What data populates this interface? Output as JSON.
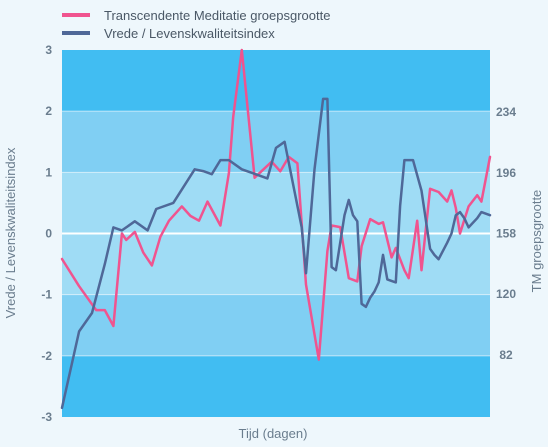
{
  "chart_data": {
    "type": "line",
    "xlabel": "Tijd (dagen)",
    "ylabel_left": "Vrede / Levenskwaliteitsindex",
    "ylabel_right": "TM groepsgrootte",
    "ylim_left": [
      -3,
      3
    ],
    "yticks_left": [
      -3,
      -2,
      -1,
      0,
      1,
      2,
      3
    ],
    "ylim_right": [
      43,
      273
    ],
    "yticks_right": [
      82,
      120,
      158,
      196,
      234
    ],
    "bands": [
      {
        "from": -3,
        "to": -2,
        "color": "#41bdf2"
      },
      {
        "from": -2,
        "to": -1,
        "color": "#80cff3"
      },
      {
        "from": -1,
        "to": 0,
        "color": "#9fdcf5"
      },
      {
        "from": 0,
        "to": 1,
        "color": "#9fdcf5"
      },
      {
        "from": 1,
        "to": 2,
        "color": "#80cff3"
      },
      {
        "from": 2,
        "to": 3,
        "color": "#41bdf2"
      }
    ],
    "series": [
      {
        "name": "Transcendente Meditatie groepsgrootte",
        "axis": "right",
        "color": "#f0548f",
        "x": [
          0,
          4,
          8,
          10,
          12,
          14,
          15,
          17,
          19,
          21,
          23,
          25,
          28,
          30,
          32,
          34,
          37,
          39,
          40,
          42,
          45,
          49,
          51,
          53,
          55,
          57,
          60,
          62,
          63,
          65,
          67,
          69,
          70,
          72,
          74,
          75,
          77,
          78,
          80,
          81,
          83,
          84,
          86,
          88,
          90,
          91,
          92,
          93,
          95,
          97,
          98,
          100
        ],
        "y": [
          142,
          125,
          110,
          110,
          100,
          158,
          154,
          159,
          146,
          138,
          156,
          166,
          175,
          169,
          166,
          178,
          163,
          196,
          231,
          273,
          193,
          203,
          197,
          206,
          202,
          126,
          79,
          147,
          163,
          162,
          130,
          128,
          150,
          167,
          164,
          165,
          143,
          149,
          135,
          130,
          166,
          135,
          186,
          184,
          178,
          185,
          174,
          158,
          175,
          182,
          178,
          206
        ]
      },
      {
        "name": "Vrede / Levenskwaliteitsindex",
        "axis": "left",
        "color": "#4f6898",
        "x": [
          0,
          4,
          7,
          10,
          12,
          14,
          17,
          20,
          22,
          26,
          31,
          33,
          35,
          37,
          39,
          42,
          44,
          48,
          50,
          52,
          56,
          57,
          59,
          61,
          62,
          63,
          64,
          66,
          67,
          68,
          69,
          70,
          71,
          72,
          73,
          74,
          75,
          76,
          78,
          79,
          80,
          82,
          84,
          86,
          87,
          88,
          90,
          91,
          92,
          93,
          94,
          95,
          97,
          98,
          100
        ],
        "y": [
          -2.85,
          -1.6,
          -1.3,
          -0.5,
          0.1,
          0.05,
          0.2,
          0.05,
          0.4,
          0.5,
          1.05,
          1.02,
          0.97,
          1.2,
          1.2,
          1.05,
          1.0,
          0.9,
          1.4,
          1.5,
          0.1,
          -0.65,
          1.05,
          2.2,
          2.2,
          -0.55,
          -0.6,
          0.3,
          0.55,
          0.3,
          0.2,
          -1.15,
          -1.2,
          -1.05,
          -0.95,
          -0.8,
          -0.35,
          -0.75,
          -0.8,
          0.45,
          1.2,
          1.2,
          0.7,
          -0.25,
          -0.35,
          -0.42,
          -0.15,
          0.0,
          0.3,
          0.35,
          0.25,
          0.1,
          0.25,
          0.35,
          0.3
        ]
      }
    ]
  }
}
